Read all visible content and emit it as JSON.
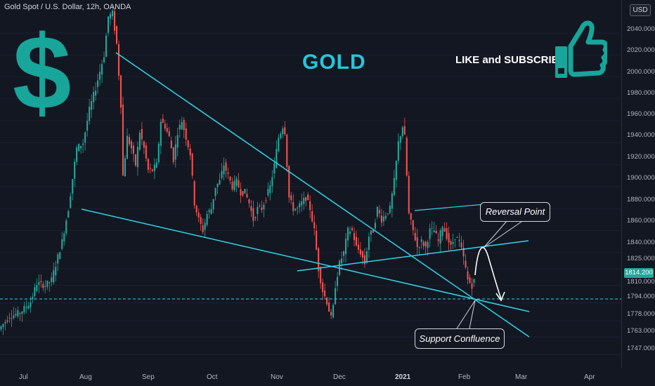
{
  "header": {
    "title": "Gold Spot / U.S. Dollar, 12h, OANDA"
  },
  "currency_button": "USD",
  "overlay": {
    "gold_label": "GOLD",
    "dollar_symbol": "$",
    "like_text": "LIKE and SUBSCRIBE",
    "thumb_icon": "thumbs-up-icon",
    "reversal_label": "Reversal Point",
    "support_label": "Support Confluence"
  },
  "last_price": "1814.200",
  "colors": {
    "up": "#26a69a",
    "down": "#ef5350",
    "trendline": "#2fd6e8",
    "accent": "#18a59a"
  },
  "chart_data": {
    "type": "candlestick",
    "title": "Gold Spot / U.S. Dollar, 12h, OANDA",
    "ylim": [
      1735,
      2065
    ],
    "y_ticks": [
      "2040.000",
      "2020.000",
      "2000.000",
      "1980.000",
      "1960.000",
      "1940.000",
      "1920.000",
      "1900.000",
      "1880.000",
      "1860.000",
      "1840.000",
      "1825.000",
      "1810.000",
      "1794.000",
      "1778.000",
      "1763.000",
      "1747.000"
    ],
    "x_ticks": [
      "Jul",
      "Aug",
      "Sep",
      "Oct",
      "Nov",
      "Dec",
      "2021",
      "Feb",
      "Mar",
      "Apr"
    ],
    "dashed_support_level": 1791,
    "price_path": [
      [
        0,
        1770
      ],
      [
        5,
        1782
      ],
      [
        10,
        1785
      ],
      [
        15,
        1795
      ],
      [
        18,
        1812
      ],
      [
        22,
        1810
      ],
      [
        25,
        1815
      ],
      [
        30,
        1850
      ],
      [
        33,
        1880
      ],
      [
        37,
        1935
      ],
      [
        40,
        1940
      ],
      [
        43,
        1970
      ],
      [
        46,
        1990
      ],
      [
        50,
        2020
      ],
      [
        52,
        2055
      ],
      [
        54,
        2058
      ],
      [
        56,
        2030
      ],
      [
        58,
        1975
      ],
      [
        59,
        1910
      ],
      [
        61,
        1945
      ],
      [
        63,
        1935
      ],
      [
        65,
        1920
      ],
      [
        67,
        1950
      ],
      [
        69,
        1935
      ],
      [
        71,
        1915
      ],
      [
        73,
        1915
      ],
      [
        75,
        1920
      ],
      [
        77,
        1960
      ],
      [
        79,
        1955
      ],
      [
        81,
        1945
      ],
      [
        83,
        1925
      ],
      [
        85,
        1950
      ],
      [
        87,
        1960
      ],
      [
        89,
        1945
      ],
      [
        91,
        1930
      ],
      [
        93,
        1885
      ],
      [
        95,
        1870
      ],
      [
        97,
        1860
      ],
      [
        99,
        1875
      ],
      [
        101,
        1880
      ],
      [
        103,
        1900
      ],
      [
        105,
        1905
      ],
      [
        107,
        1920
      ],
      [
        109,
        1910
      ],
      [
        111,
        1900
      ],
      [
        113,
        1905
      ],
      [
        115,
        1895
      ],
      [
        117,
        1895
      ],
      [
        119,
        1885
      ],
      [
        121,
        1870
      ],
      [
        123,
        1880
      ],
      [
        125,
        1880
      ],
      [
        127,
        1890
      ],
      [
        129,
        1900
      ],
      [
        131,
        1920
      ],
      [
        133,
        1945
      ],
      [
        135,
        1955
      ],
      [
        136,
        1950
      ],
      [
        138,
        1890
      ],
      [
        140,
        1880
      ],
      [
        142,
        1880
      ],
      [
        144,
        1885
      ],
      [
        146,
        1890
      ],
      [
        148,
        1880
      ],
      [
        150,
        1860
      ],
      [
        152,
        1825
      ],
      [
        154,
        1805
      ],
      [
        156,
        1795
      ],
      [
        158,
        1780
      ],
      [
        159,
        1790
      ],
      [
        160,
        1810
      ],
      [
        162,
        1830
      ],
      [
        164,
        1840
      ],
      [
        166,
        1860
      ],
      [
        168,
        1860
      ],
      [
        170,
        1845
      ],
      [
        172,
        1840
      ],
      [
        174,
        1830
      ],
      [
        176,
        1855
      ],
      [
        178,
        1860
      ],
      [
        180,
        1880
      ],
      [
        182,
        1870
      ],
      [
        184,
        1875
      ],
      [
        186,
        1880
      ],
      [
        188,
        1905
      ],
      [
        190,
        1940
      ],
      [
        192,
        1955
      ],
      [
        193,
        1945
      ],
      [
        195,
        1875
      ],
      [
        197,
        1860
      ],
      [
        199,
        1845
      ],
      [
        201,
        1850
      ],
      [
        203,
        1845
      ],
      [
        205,
        1860
      ],
      [
        207,
        1860
      ],
      [
        209,
        1850
      ],
      [
        211,
        1865
      ],
      [
        213,
        1855
      ],
      [
        215,
        1845
      ],
      [
        217,
        1855
      ],
      [
        219,
        1850
      ],
      [
        221,
        1835
      ],
      [
        223,
        1815
      ],
      [
        225,
        1810
      ],
      [
        226,
        1814
      ]
    ],
    "annotations": [
      "Reversal Point",
      "Support Confluence"
    ]
  }
}
